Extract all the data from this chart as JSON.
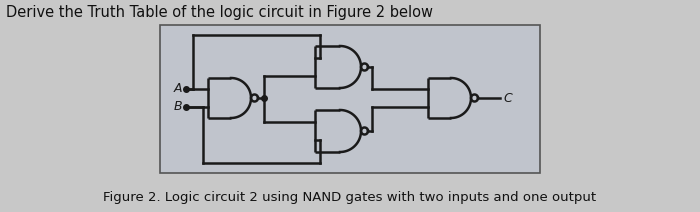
{
  "title": "Derive the Truth Table of the logic circuit in Figure 2 below",
  "caption": "Figure 2. Logic circuit 2 using NAND gates with two inputs and one output",
  "title_fontsize": 10.5,
  "caption_fontsize": 9.5,
  "bg_color": "#c8c8c8",
  "box_color": "#c0c4cc",
  "label_A": "A",
  "label_B": "B",
  "label_C": "C",
  "line_color": "#1a1a1a"
}
